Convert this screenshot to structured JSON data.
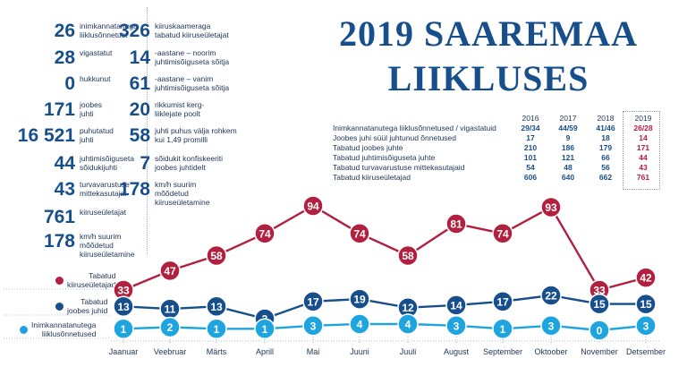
{
  "title": {
    "line1": "2019 SAAREMAA",
    "line2": "LIIKLUSES"
  },
  "stats_left": [
    {
      "value": "26",
      "label": "inimkannatanuga\nliiklusõnnetust"
    },
    {
      "value": "28",
      "label": "vigastatut"
    },
    {
      "value": "0",
      "label": "hukkunut"
    },
    {
      "value": "171",
      "label": "joobes\njuhti"
    },
    {
      "value": "16 521",
      "label": "puhutatud\njuhti"
    },
    {
      "value": "44",
      "label": "juhtimisõiguseta\nsõidukijuhti"
    },
    {
      "value": "43",
      "label": "turvavarustuse\nmittekasutajat"
    },
    {
      "value": "761",
      "label": "kiiruseületajat"
    },
    {
      "value": "178",
      "label": "km/h suurim\nmõõdetud\nkiiruseületamine"
    }
  ],
  "stats_right": [
    {
      "value": "326",
      "label": "kiiruskaameraga\ntabatud kiiruseületajat"
    },
    {
      "value": "14",
      "label": "-aastane – noorim\njuhtimisõiguseta sõitja"
    },
    {
      "value": "61",
      "label": "-aastane – vanim\njuhtimisõiguseta sõitja"
    },
    {
      "value": "20",
      "label": "rikkumist kerg-\nliiklejate poolt"
    },
    {
      "value": "58",
      "label": "juhti puhus välja rohkem\nkui 1,49 promilli"
    },
    {
      "value": "7",
      "label": "sõidukit konfiskeeriti\njoobes juhtidelt"
    },
    {
      "value": "178",
      "label": "km/h suurim\nmõõdetud\nkiiruseületamine"
    }
  ],
  "year_table": {
    "years": [
      "2016",
      "2017",
      "2018",
      "2019"
    ],
    "rows": [
      {
        "label": "Inimkannatanutega liiklusõnnetused / vigastatuid",
        "values": [
          "29/34",
          "44/59",
          "41/46",
          "26/28"
        ]
      },
      {
        "label": "Joobes juhi süül juhtunud õnnetused",
        "values": [
          "17",
          "9",
          "18",
          "14"
        ]
      },
      {
        "label": "Tabatud joobes juhte",
        "values": [
          "210",
          "186",
          "179",
          "171"
        ]
      },
      {
        "label": "Tabatud juhtimisõiguseta juhte",
        "values": [
          "101",
          "121",
          "66",
          "44"
        ]
      },
      {
        "label": "Tabatud turvavarustuse mittekasutajaid",
        "values": [
          "54",
          "48",
          "56",
          "43"
        ]
      },
      {
        "label": "Tabatud kiiruseületajad",
        "values": [
          "606",
          "640",
          "662",
          "761"
        ]
      }
    ]
  },
  "chart_data": {
    "type": "line",
    "categories": [
      "Jaanuar",
      "Veebruar",
      "Märts",
      "Aprill",
      "Mai",
      "Juuni",
      "Juuli",
      "August",
      "September",
      "Oktoober",
      "November",
      "Detsember"
    ],
    "series": [
      {
        "name": "Tabatud\nkiiruseületajad",
        "color": "#b2203f",
        "values": [
          33,
          47,
          58,
          74,
          94,
          74,
          58,
          81,
          74,
          93,
          33,
          42
        ]
      },
      {
        "name": "Tabatud\njoobes juhid",
        "color": "#174f8c",
        "values": [
          13,
          11,
          13,
          3,
          17,
          19,
          12,
          14,
          17,
          22,
          15,
          15
        ]
      },
      {
        "name": "Inimkannatanutega\nliiklusõnnetused",
        "color": "#1ea5df",
        "values": [
          1,
          2,
          1,
          1,
          3,
          4,
          4,
          3,
          1,
          3,
          0,
          3
        ]
      }
    ],
    "ylim": [
      0,
      100
    ],
    "grid": false,
    "legend": "left"
  }
}
